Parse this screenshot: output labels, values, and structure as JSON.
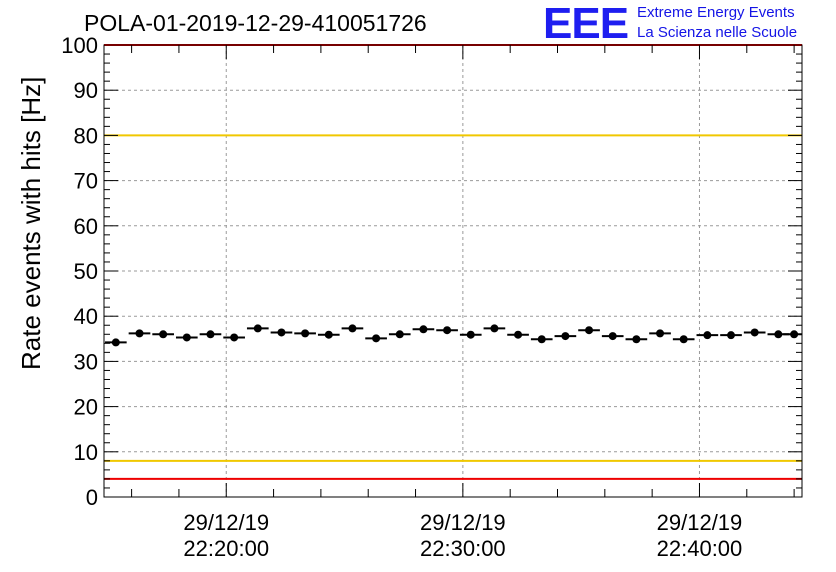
{
  "title": "POLA-01-2019-12-29-410051726",
  "logo": {
    "mark": "EEE",
    "line1": "Extreme Energy Events",
    "line2": "La Scienza nelle Scuole"
  },
  "colors": {
    "points": "#000000",
    "upper_threshold": "#f0c800",
    "lower_threshold": "#f0c800",
    "limit_lines": "#ee0000",
    "grid": "#9a9a9a",
    "logo": "#1e1ef0"
  },
  "chart_data": {
    "type": "scatter",
    "ylabel": "Rate events with hits [Hz]",
    "xlabel": "",
    "ylim": [
      0,
      100
    ],
    "yticks": [
      0,
      10,
      20,
      30,
      40,
      50,
      60,
      70,
      80,
      90,
      100
    ],
    "xlim": [
      "2019-12-29 22:14:50",
      "2019-12-29 22:44:20"
    ],
    "xticks": [
      {
        "time": "2019-12-29 22:20:00",
        "date_label": "29/12/19",
        "time_label": "22:20:00"
      },
      {
        "time": "2019-12-29 22:30:00",
        "date_label": "29/12/19",
        "time_label": "22:30:00"
      },
      {
        "time": "2019-12-29 22:40:00",
        "date_label": "29/12/19",
        "time_label": "22:40:00"
      }
    ],
    "grid": true,
    "reference_lines": [
      {
        "y": 100,
        "color": "#ee0000"
      },
      {
        "y": 80,
        "color": "#f0c800"
      },
      {
        "y": 8,
        "color": "#f0c800"
      },
      {
        "y": 4,
        "color": "#ee0000"
      }
    ],
    "bin_width_seconds": 60,
    "series": [
      {
        "x": [
          "2019-12-29 22:15:20",
          "2019-12-29 22:16:20",
          "2019-12-29 22:17:20",
          "2019-12-29 22:18:20",
          "2019-12-29 22:19:20",
          "2019-12-29 22:20:20",
          "2019-12-29 22:21:20",
          "2019-12-29 22:22:20",
          "2019-12-29 22:23:20",
          "2019-12-29 22:24:20",
          "2019-12-29 22:25:20",
          "2019-12-29 22:26:20",
          "2019-12-29 22:27:20",
          "2019-12-29 22:28:20",
          "2019-12-29 22:29:20",
          "2019-12-29 22:30:20",
          "2019-12-29 22:31:20",
          "2019-12-29 22:32:20",
          "2019-12-29 22:33:20",
          "2019-12-29 22:34:20",
          "2019-12-29 22:35:20",
          "2019-12-29 22:36:20",
          "2019-12-29 22:37:20",
          "2019-12-29 22:38:20",
          "2019-12-29 22:39:20",
          "2019-12-29 22:40:20",
          "2019-12-29 22:41:20",
          "2019-12-29 22:42:20",
          "2019-12-29 22:43:20",
          "2019-12-29 22:44:00"
        ],
        "values": [
          34.2,
          36.2,
          36.0,
          35.3,
          36.0,
          35.3,
          37.3,
          36.4,
          36.2,
          35.9,
          37.3,
          35.1,
          36.0,
          37.1,
          36.9,
          35.9,
          37.3,
          35.9,
          34.9,
          35.6,
          36.9,
          35.6,
          34.9,
          36.2,
          34.9,
          35.8,
          35.8,
          36.4,
          36.0,
          36.0
        ]
      }
    ]
  }
}
